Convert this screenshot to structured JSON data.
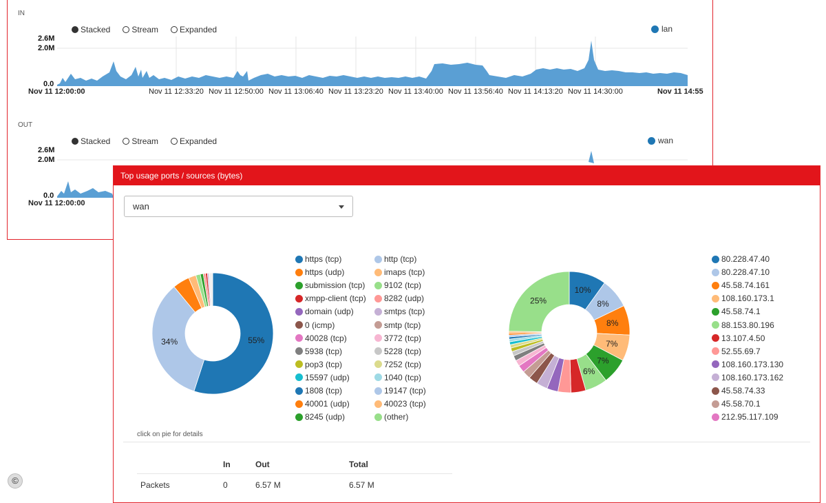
{
  "traffic": {
    "in_label": "IN",
    "out_label": "OUT",
    "modes": [
      "Stacked",
      "Stream",
      "Expanded"
    ],
    "selected_mode": "Stacked",
    "in_series": "lan",
    "out_series": "wan",
    "series_color": "#1f77b4",
    "y_ticks": [
      "2.6M",
      "2.0M",
      "0.0"
    ],
    "x_start": "Nov 11 12:00:00",
    "x_ticks": [
      "Nov 11 12:33:20",
      "Nov 11 12:50:00",
      "Nov 11 13:06:40",
      "Nov 11 13:23:20",
      "Nov 11 13:40:00",
      "Nov 11 13:56:40",
      "Nov 11 14:13:20",
      "Nov 11 14:30:00"
    ],
    "x_end": "Nov 11 14:55"
  },
  "usage": {
    "title": "Top usage ports / sources (bytes)",
    "interface": "wan",
    "hint": "click on pie for details",
    "ports_legend": [
      {
        "label": "https (tcp)",
        "color": "#1f77b4"
      },
      {
        "label": "http (tcp)",
        "color": "#aec7e8"
      },
      {
        "label": "https (udp)",
        "color": "#ff7f0e"
      },
      {
        "label": "imaps (tcp)",
        "color": "#ffbb78"
      },
      {
        "label": "submission (tcp)",
        "color": "#2ca02c"
      },
      {
        "label": "9102 (tcp)",
        "color": "#98df8a"
      },
      {
        "label": "xmpp-client (tcp)",
        "color": "#d62728"
      },
      {
        "label": "8282 (udp)",
        "color": "#ff9896"
      },
      {
        "label": "domain (udp)",
        "color": "#9467bd"
      },
      {
        "label": "smtps (tcp)",
        "color": "#c5b0d5"
      },
      {
        "label": "0 (icmp)",
        "color": "#8c564b"
      },
      {
        "label": "smtp (tcp)",
        "color": "#c49c94"
      },
      {
        "label": "40028 (tcp)",
        "color": "#e377c2"
      },
      {
        "label": "3772 (tcp)",
        "color": "#f7b6d2"
      },
      {
        "label": "5938 (tcp)",
        "color": "#7f7f7f"
      },
      {
        "label": "5228 (tcp)",
        "color": "#c7c7c7"
      },
      {
        "label": "pop3 (tcp)",
        "color": "#bcbd22"
      },
      {
        "label": "7252 (tcp)",
        "color": "#dbdb8d"
      },
      {
        "label": "15597 (udp)",
        "color": "#17becf"
      },
      {
        "label": "1040 (tcp)",
        "color": "#9edae5"
      },
      {
        "label": "1808 (tcp)",
        "color": "#1f77b4"
      },
      {
        "label": "19147 (tcp)",
        "color": "#aec7e8"
      },
      {
        "label": "40001 (udp)",
        "color": "#ff7f0e"
      },
      {
        "label": "40023 (tcp)",
        "color": "#ffbb78"
      },
      {
        "label": "8245 (udp)",
        "color": "#2ca02c"
      },
      {
        "label": "(other)",
        "color": "#98df8a"
      }
    ],
    "sources_legend": [
      {
        "label": "80.228.47.40",
        "color": "#1f77b4"
      },
      {
        "label": "80.228.47.10",
        "color": "#aec7e8"
      },
      {
        "label": "45.58.74.161",
        "color": "#ff7f0e"
      },
      {
        "label": "108.160.173.1",
        "color": "#ffbb78"
      },
      {
        "label": "45.58.74.1",
        "color": "#2ca02c"
      },
      {
        "label": "88.153.80.196",
        "color": "#98df8a"
      },
      {
        "label": "13.107.4.50",
        "color": "#d62728"
      },
      {
        "label": "52.55.69.7",
        "color": "#ff9896"
      },
      {
        "label": "108.160.173.130",
        "color": "#9467bd"
      },
      {
        "label": "108.160.173.162",
        "color": "#c5b0d5"
      },
      {
        "label": "45.58.74.33",
        "color": "#8c564b"
      },
      {
        "label": "45.58.70.1",
        "color": "#c49c94"
      },
      {
        "label": "212.95.117.109",
        "color": "#e377c2"
      }
    ],
    "ports_pie": {
      "slices": [
        {
          "value": 55,
          "color": "#1f77b4",
          "label": "55%"
        },
        {
          "value": 34,
          "color": "#aec7e8",
          "label": "34%"
        },
        {
          "value": 4.5,
          "color": "#ff7f0e",
          "label": ""
        },
        {
          "value": 2,
          "color": "#ffbb78",
          "label": ""
        },
        {
          "value": 1.2,
          "color": "#98df8a",
          "label": ""
        },
        {
          "value": 0.8,
          "color": "#2ca02c",
          "label": ""
        },
        {
          "value": 0.6,
          "color": "#ff9896",
          "label": ""
        },
        {
          "value": 0.5,
          "color": "#d62728",
          "label": ""
        },
        {
          "value": 0.4,
          "color": "#c5b0d5",
          "label": ""
        },
        {
          "value": 1.0,
          "color": "#f0f0f0",
          "label": ""
        }
      ]
    },
    "sources_pie": {
      "slices": [
        {
          "value": 10,
          "color": "#1f77b4",
          "label": "10%"
        },
        {
          "value": 8,
          "color": "#aec7e8",
          "label": "8%"
        },
        {
          "value": 8,
          "color": "#ff7f0e",
          "label": "8%"
        },
        {
          "value": 7,
          "color": "#ffbb78",
          "label": "7%"
        },
        {
          "value": 7,
          "color": "#2ca02c",
          "label": "7%"
        },
        {
          "value": 6,
          "color": "#98df8a",
          "label": "6%"
        },
        {
          "value": 4,
          "color": "#d62728",
          "label": ""
        },
        {
          "value": 3.5,
          "color": "#ff9896",
          "label": ""
        },
        {
          "value": 3,
          "color": "#9467bd",
          "label": ""
        },
        {
          "value": 3,
          "color": "#c5b0d5",
          "label": ""
        },
        {
          "value": 2.5,
          "color": "#8c564b",
          "label": ""
        },
        {
          "value": 2.2,
          "color": "#c49c94",
          "label": ""
        },
        {
          "value": 2,
          "color": "#e377c2",
          "label": ""
        },
        {
          "value": 1.6,
          "color": "#f7b6d2",
          "label": ""
        },
        {
          "value": 1.4,
          "color": "#7f7f7f",
          "label": ""
        },
        {
          "value": 1.2,
          "color": "#c7c7c7",
          "label": ""
        },
        {
          "value": 1.0,
          "color": "#bcbd22",
          "label": ""
        },
        {
          "value": 0.9,
          "color": "#dbdb8d",
          "label": ""
        },
        {
          "value": 0.8,
          "color": "#17becf",
          "label": ""
        },
        {
          "value": 0.7,
          "color": "#9edae5",
          "label": ""
        },
        {
          "value": 0.6,
          "color": "#1f77b4",
          "label": ""
        },
        {
          "value": 0.5,
          "color": "#aec7e8",
          "label": ""
        },
        {
          "value": 0.5,
          "color": "#ff7f0e",
          "label": ""
        },
        {
          "value": 0.5,
          "color": "#ffbb78",
          "label": ""
        },
        {
          "value": 25,
          "color": "#98df8a",
          "label": "25%"
        }
      ]
    },
    "table": {
      "headers": [
        "",
        "In",
        "Out",
        "Total"
      ],
      "rows": [
        [
          "Packets",
          "0",
          "6.57 M",
          "6.57 M"
        ]
      ]
    }
  },
  "footer": {
    "copyright_glyph": "©"
  }
}
